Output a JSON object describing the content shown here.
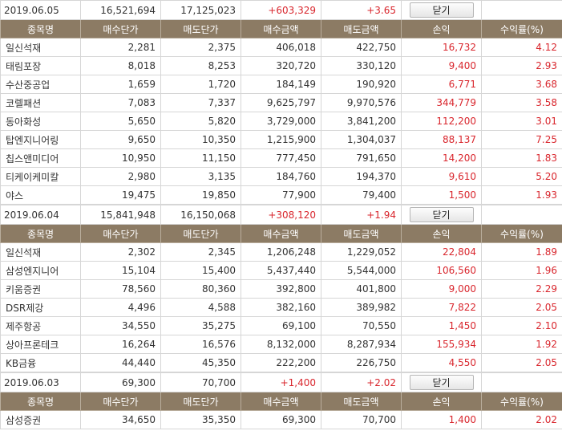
{
  "headers": [
    "종목명",
    "매수단가",
    "매도단가",
    "매수금액",
    "매도금액",
    "손익",
    "수익률(%)"
  ],
  "close_label": "닫기",
  "groups": [
    {
      "date": "2019.06.05",
      "buy_total": "16,521,694",
      "sell_total": "17,125,023",
      "profit": "+603,329",
      "rate": "+3.65",
      "rows": [
        {
          "name": "일신석재",
          "buy_price": "2,281",
          "sell_price": "2,375",
          "buy_amount": "406,018",
          "sell_amount": "422,750",
          "profit": "16,732",
          "rate": "4.12"
        },
        {
          "name": "태림포장",
          "buy_price": "8,018",
          "sell_price": "8,253",
          "buy_amount": "320,720",
          "sell_amount": "330,120",
          "profit": "9,400",
          "rate": "2.93"
        },
        {
          "name": "수산중공업",
          "buy_price": "1,659",
          "sell_price": "1,720",
          "buy_amount": "184,149",
          "sell_amount": "190,920",
          "profit": "6,771",
          "rate": "3.68"
        },
        {
          "name": "코렐패션",
          "buy_price": "7,083",
          "sell_price": "7,337",
          "buy_amount": "9,625,797",
          "sell_amount": "9,970,576",
          "profit": "344,779",
          "rate": "3.58"
        },
        {
          "name": "동아화성",
          "buy_price": "5,650",
          "sell_price": "5,820",
          "buy_amount": "3,729,000",
          "sell_amount": "3,841,200",
          "profit": "112,200",
          "rate": "3.01"
        },
        {
          "name": "탑엔지니어링",
          "buy_price": "9,650",
          "sell_price": "10,350",
          "buy_amount": "1,215,900",
          "sell_amount": "1,304,037",
          "profit": "88,137",
          "rate": "7.25"
        },
        {
          "name": "칩스앤미디어",
          "buy_price": "10,950",
          "sell_price": "11,150",
          "buy_amount": "777,450",
          "sell_amount": "791,650",
          "profit": "14,200",
          "rate": "1.83"
        },
        {
          "name": "티케이케미칼",
          "buy_price": "2,980",
          "sell_price": "3,135",
          "buy_amount": "184,760",
          "sell_amount": "194,370",
          "profit": "9,610",
          "rate": "5.20"
        },
        {
          "name": "야스",
          "buy_price": "19,475",
          "sell_price": "19,850",
          "buy_amount": "77,900",
          "sell_amount": "79,400",
          "profit": "1,500",
          "rate": "1.93"
        }
      ]
    },
    {
      "date": "2019.06.04",
      "buy_total": "15,841,948",
      "sell_total": "16,150,068",
      "profit": "+308,120",
      "rate": "+1.94",
      "rows": [
        {
          "name": "일신석재",
          "buy_price": "2,302",
          "sell_price": "2,345",
          "buy_amount": "1,206,248",
          "sell_amount": "1,229,052",
          "profit": "22,804",
          "rate": "1.89"
        },
        {
          "name": "삼성엔지니어",
          "buy_price": "15,104",
          "sell_price": "15,400",
          "buy_amount": "5,437,440",
          "sell_amount": "5,544,000",
          "profit": "106,560",
          "rate": "1.96"
        },
        {
          "name": "키움증권",
          "buy_price": "78,560",
          "sell_price": "80,360",
          "buy_amount": "392,800",
          "sell_amount": "401,800",
          "profit": "9,000",
          "rate": "2.29"
        },
        {
          "name": "DSR제강",
          "buy_price": "4,496",
          "sell_price": "4,588",
          "buy_amount": "382,160",
          "sell_amount": "389,982",
          "profit": "7,822",
          "rate": "2.05"
        },
        {
          "name": "제주항공",
          "buy_price": "34,550",
          "sell_price": "35,275",
          "buy_amount": "69,100",
          "sell_amount": "70,550",
          "profit": "1,450",
          "rate": "2.10"
        },
        {
          "name": "상아프론테크",
          "buy_price": "16,264",
          "sell_price": "16,576",
          "buy_amount": "8,132,000",
          "sell_amount": "8,287,934",
          "profit": "155,934",
          "rate": "1.92"
        },
        {
          "name": "KB금융",
          "buy_price": "44,440",
          "sell_price": "45,350",
          "buy_amount": "222,200",
          "sell_amount": "226,750",
          "profit": "4,550",
          "rate": "2.05"
        }
      ]
    },
    {
      "date": "2019.06.03",
      "buy_total": "69,300",
      "sell_total": "70,700",
      "profit": "+1,400",
      "rate": "+2.02",
      "rows": [
        {
          "name": "삼성증권",
          "buy_price": "34,650",
          "sell_price": "35,350",
          "buy_amount": "69,300",
          "sell_amount": "70,700",
          "profit": "1,400",
          "rate": "2.02"
        }
      ]
    }
  ]
}
